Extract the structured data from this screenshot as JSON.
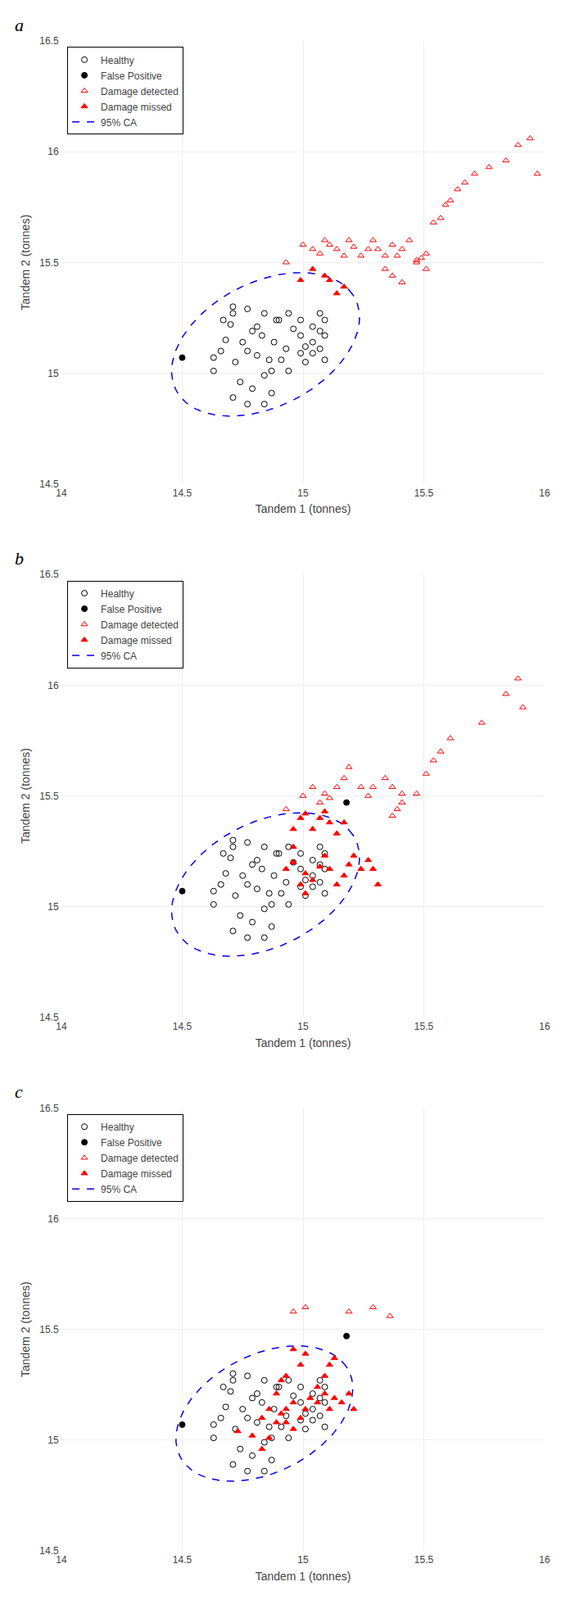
{
  "chart_data": [
    {
      "type": "scatter",
      "title": "a",
      "xlabel": "Tandem 1 (tonnes)",
      "ylabel": "Tandem 2 (tonnes)",
      "xlim": [
        14,
        16
      ],
      "ylim": [
        14.5,
        16.5
      ],
      "xticks": [
        14,
        14.5,
        15,
        15.5,
        16
      ],
      "yticks": [
        14.5,
        15,
        15.5,
        16,
        16.5
      ],
      "grid": true,
      "legend": "upper left",
      "series": [
        {
          "name": "Healthy",
          "color": "#000000",
          "marker": "circle-open",
          "x": [
            14.63,
            14.66,
            14.68,
            14.7,
            14.72,
            14.75,
            14.77,
            14.79,
            14.81,
            14.83,
            14.86,
            14.88,
            14.9,
            14.93,
            14.96,
            14.99,
            15.01,
            15.04,
            15.07,
            15.09,
            14.71,
            14.74,
            14.79,
            14.84,
            14.87,
            14.91,
            14.94,
            14.99,
            15.01,
            15.04,
            15.07,
            15.09,
            14.63,
            14.67,
            14.71,
            14.77,
            14.81,
            14.84,
            14.89,
            14.94,
            14.99,
            15.04,
            15.07,
            15.09,
            14.71,
            14.77,
            14.84,
            14.87
          ],
          "values": [
            15.07,
            15.1,
            15.15,
            15.22,
            15.05,
            15.14,
            15.1,
            15.19,
            15.08,
            15.17,
            15.06,
            15.14,
            15.24,
            15.11,
            15.2,
            15.17,
            15.12,
            15.09,
            15.19,
            15.06,
            15.3,
            14.96,
            14.93,
            14.99,
            15.01,
            15.06,
            15.01,
            15.09,
            15.05,
            15.14,
            15.11,
            15.17,
            15.01,
            15.24,
            15.27,
            15.29,
            15.21,
            15.27,
            15.24,
            15.27,
            15.24,
            15.21,
            15.27,
            15.24,
            14.89,
            14.86,
            14.86,
            14.91
          ]
        },
        {
          "name": "False Positive",
          "color": "#000000",
          "marker": "circle",
          "x": [
            14.5
          ],
          "values": [
            15.07
          ]
        },
        {
          "name": "Damage detected",
          "color": "#FF0000",
          "marker": "triangle-up-open",
          "x": [
            14.93,
            15.0,
            15.04,
            15.07,
            15.09,
            15.11,
            15.14,
            15.17,
            15.19,
            15.21,
            15.24,
            15.27,
            15.29,
            15.31,
            15.34,
            15.37,
            15.39,
            15.41,
            15.44,
            15.47,
            15.49,
            15.51,
            15.54,
            15.57,
            15.59,
            15.61,
            15.64,
            15.67,
            15.71,
            15.77,
            15.84,
            15.89,
            15.94,
            15.97,
            15.47,
            15.51,
            15.41,
            15.37,
            15.34
          ],
          "values": [
            15.5,
            15.58,
            15.56,
            15.54,
            15.6,
            15.58,
            15.56,
            15.53,
            15.6,
            15.57,
            15.53,
            15.56,
            15.6,
            15.56,
            15.53,
            15.58,
            15.53,
            15.56,
            15.6,
            15.5,
            15.52,
            15.54,
            15.68,
            15.7,
            15.76,
            15.78,
            15.83,
            15.86,
            15.9,
            15.93,
            15.96,
            16.03,
            16.06,
            15.9,
            15.51,
            15.47,
            15.41,
            15.44,
            15.47
          ]
        },
        {
          "name": "Damage missed",
          "color": "#FF0000",
          "marker": "triangle-up",
          "x": [
            14.99,
            15.04,
            15.09,
            15.11,
            15.14,
            15.17
          ],
          "values": [
            15.42,
            15.47,
            15.44,
            15.42,
            15.36,
            15.39
          ]
        },
        {
          "name": "95% CA",
          "type": "line",
          "line_style": "dashed",
          "color": "#0000EE",
          "ellipse": {
            "cx": 14.845,
            "cy": 15.13,
            "width": 0.85,
            "height": 0.55,
            "angle": 32
          }
        }
      ]
    },
    {
      "type": "scatter",
      "title": "b",
      "xlabel": "Tandem 1 (tonnes)",
      "ylabel": "Tandem 2 (tonnes)",
      "xlim": [
        14,
        16
      ],
      "ylim": [
        14.5,
        16.5
      ],
      "xticks": [
        14,
        14.5,
        15,
        15.5,
        16
      ],
      "yticks": [
        14.5,
        15,
        15.5,
        16,
        16.5
      ],
      "grid": true,
      "legend": "upper left",
      "series": [
        {
          "name": "Healthy",
          "color": "#000000",
          "marker": "circle-open",
          "x": [
            14.63,
            14.66,
            14.68,
            14.7,
            14.72,
            14.75,
            14.77,
            14.79,
            14.81,
            14.83,
            14.86,
            14.88,
            14.9,
            14.93,
            14.96,
            14.99,
            15.01,
            15.04,
            15.07,
            15.09,
            14.71,
            14.74,
            14.79,
            14.84,
            14.87,
            14.91,
            14.94,
            14.99,
            15.01,
            15.04,
            15.07,
            15.09,
            14.63,
            14.67,
            14.71,
            14.77,
            14.81,
            14.84,
            14.89,
            14.94,
            14.99,
            15.04,
            15.07,
            15.09,
            14.71,
            14.77,
            14.84,
            14.87
          ],
          "values": [
            15.07,
            15.1,
            15.15,
            15.22,
            15.05,
            15.14,
            15.1,
            15.19,
            15.08,
            15.17,
            15.06,
            15.14,
            15.24,
            15.11,
            15.2,
            15.17,
            15.12,
            15.09,
            15.19,
            15.06,
            15.3,
            14.96,
            14.93,
            14.99,
            15.01,
            15.06,
            15.01,
            15.09,
            15.05,
            15.14,
            15.11,
            15.17,
            15.01,
            15.24,
            15.27,
            15.29,
            15.21,
            15.27,
            15.24,
            15.27,
            15.24,
            15.21,
            15.27,
            15.24,
            14.89,
            14.86,
            14.86,
            14.91
          ]
        },
        {
          "name": "False Positive",
          "color": "#000000",
          "marker": "circle",
          "x": [
            14.5,
            15.18
          ],
          "values": [
            15.07,
            15.47
          ]
        },
        {
          "name": "Damage detected",
          "color": "#FF0000",
          "marker": "triangle-up-open",
          "x": [
            14.93,
            15.0,
            15.04,
            15.07,
            15.09,
            15.11,
            15.14,
            15.17,
            15.19,
            15.24,
            15.27,
            15.29,
            15.34,
            15.37,
            15.41,
            15.47,
            15.51,
            15.54,
            15.57,
            15.61,
            15.74,
            15.84,
            15.89,
            15.91,
            15.37,
            15.39,
            15.41
          ],
          "values": [
            15.44,
            15.5,
            15.54,
            15.47,
            15.51,
            15.49,
            15.54,
            15.58,
            15.63,
            15.54,
            15.5,
            15.54,
            15.58,
            15.54,
            15.51,
            15.51,
            15.6,
            15.66,
            15.7,
            15.76,
            15.83,
            15.96,
            16.03,
            15.9,
            15.41,
            15.44,
            15.47
          ]
        },
        {
          "name": "Damage missed",
          "color": "#FF0000",
          "marker": "triangle-up",
          "x": [
            14.93,
            14.96,
            14.96,
            14.99,
            15.01,
            15.01,
            15.04,
            15.07,
            15.09,
            15.11,
            15.14,
            15.17,
            15.19,
            15.21,
            15.24,
            15.27,
            15.29,
            15.31,
            14.96,
            14.99,
            15.01,
            15.04,
            15.07,
            15.09,
            15.11,
            15.14,
            15.17
          ],
          "values": [
            15.17,
            15.2,
            15.27,
            15.1,
            15.06,
            15.15,
            15.12,
            15.18,
            15.23,
            15.17,
            15.1,
            15.14,
            15.19,
            15.23,
            15.17,
            15.21,
            15.17,
            15.1,
            15.35,
            15.4,
            15.42,
            15.35,
            15.4,
            15.43,
            15.38,
            15.33,
            15.38
          ]
        },
        {
          "name": "95% CA",
          "type": "line",
          "line_style": "dashed",
          "color": "#0000EE",
          "ellipse": {
            "cx": 14.845,
            "cy": 15.1,
            "width": 0.85,
            "height": 0.55,
            "angle": 32
          }
        }
      ]
    },
    {
      "type": "scatter",
      "title": "c",
      "xlabel": "Tandem 1 (tonnes)",
      "ylabel": "Tandem 2 (tonnes)",
      "xlim": [
        14,
        16
      ],
      "ylim": [
        14.5,
        16.5
      ],
      "xticks": [
        14,
        14.5,
        15,
        15.5,
        16
      ],
      "yticks": [
        14.5,
        15,
        15.5,
        16,
        16.5
      ],
      "grid": true,
      "legend": "upper left",
      "series": [
        {
          "name": "Healthy",
          "color": "#000000",
          "marker": "circle-open",
          "x": [
            14.63,
            14.66,
            14.68,
            14.7,
            14.72,
            14.75,
            14.77,
            14.79,
            14.81,
            14.83,
            14.86,
            14.88,
            14.9,
            14.93,
            14.96,
            14.99,
            15.01,
            15.04,
            15.07,
            15.09,
            14.71,
            14.74,
            14.79,
            14.84,
            14.87,
            14.91,
            14.94,
            14.99,
            15.01,
            15.04,
            15.07,
            15.09,
            14.63,
            14.67,
            14.71,
            14.77,
            14.81,
            14.84,
            14.89,
            14.94,
            14.99,
            15.04,
            15.07,
            15.09,
            14.71,
            14.77,
            14.84,
            14.87
          ],
          "values": [
            15.07,
            15.1,
            15.15,
            15.22,
            15.05,
            15.14,
            15.1,
            15.19,
            15.08,
            15.17,
            15.06,
            15.14,
            15.24,
            15.11,
            15.2,
            15.17,
            15.12,
            15.09,
            15.19,
            15.06,
            15.3,
            14.96,
            14.93,
            14.99,
            15.01,
            15.06,
            15.01,
            15.09,
            15.05,
            15.14,
            15.11,
            15.17,
            15.01,
            15.24,
            15.27,
            15.29,
            15.21,
            15.27,
            15.24,
            15.27,
            15.24,
            15.21,
            15.27,
            15.24,
            14.89,
            14.86,
            14.86,
            14.91
          ]
        },
        {
          "name": "False Positive",
          "color": "#000000",
          "marker": "circle",
          "x": [
            14.5,
            15.18
          ],
          "values": [
            15.07,
            15.47
          ]
        },
        {
          "name": "Damage detected",
          "color": "#FF0000",
          "marker": "triangle-up-open",
          "x": [
            14.96,
            15.01,
            15.19,
            15.29,
            15.36
          ],
          "values": [
            15.58,
            15.6,
            15.58,
            15.6,
            15.56
          ]
        },
        {
          "name": "Damage missed",
          "color": "#FF0000",
          "marker": "triangle-up",
          "x": [
            14.73,
            14.79,
            14.83,
            14.86,
            14.89,
            14.91,
            14.93,
            14.96,
            14.99,
            15.01,
            15.03,
            15.06,
            15.09,
            15.11,
            15.13,
            15.16,
            15.19,
            15.21,
            14.89,
            14.91,
            14.93,
            14.83,
            14.86,
            15.06,
            15.09,
            15.11,
            15.13,
            15.01,
            14.96,
            14.99,
            14.93,
            14.96
          ],
          "values": [
            15.04,
            15.02,
            14.96,
            15.01,
            15.08,
            15.12,
            15.14,
            15.17,
            15.1,
            15.14,
            15.19,
            15.17,
            15.21,
            15.14,
            15.19,
            15.17,
            15.21,
            15.14,
            15.21,
            15.27,
            15.29,
            15.1,
            15.14,
            15.24,
            15.29,
            15.34,
            15.37,
            15.39,
            15.41,
            15.34,
            15.08,
            15.05
          ]
        },
        {
          "name": "95% CA",
          "type": "line",
          "line_style": "dashed",
          "color": "#0000EE",
          "ellipse": {
            "cx": 14.84,
            "cy": 15.12,
            "width": 0.8,
            "height": 0.52,
            "angle": 32
          }
        }
      ]
    }
  ]
}
